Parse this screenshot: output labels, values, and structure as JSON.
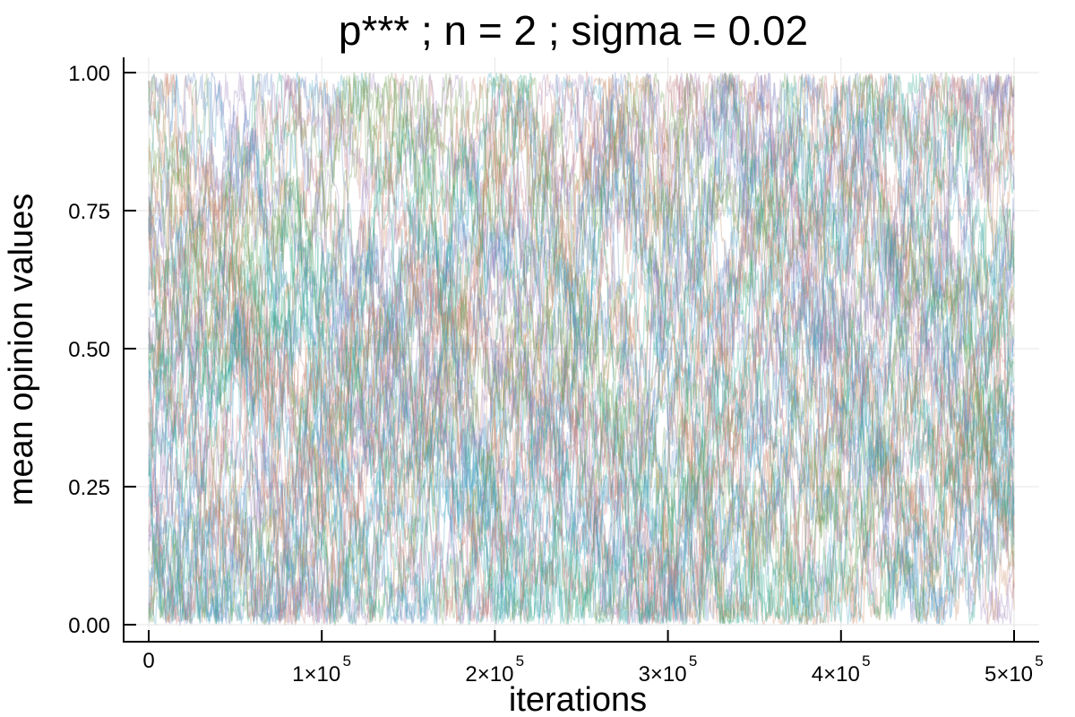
{
  "chart_data": {
    "type": "line",
    "title": "p***  ; n = 2 ; sigma = 0.02",
    "xlabel": "iterations",
    "ylabel": "mean opinion values",
    "xlim": [
      0,
      500000
    ],
    "ylim": [
      0,
      1
    ],
    "x_ticks": [
      {
        "value": 0,
        "label": "0",
        "exp": ""
      },
      {
        "value": 100000,
        "label": "1×10",
        "exp": "5"
      },
      {
        "value": 200000,
        "label": "2×10",
        "exp": "5"
      },
      {
        "value": 300000,
        "label": "3×10",
        "exp": "5"
      },
      {
        "value": 400000,
        "label": "4×10",
        "exp": "5"
      },
      {
        "value": 500000,
        "label": "5×10",
        "exp": "5"
      }
    ],
    "y_ticks": [
      {
        "value": 0,
        "label": "0.00"
      },
      {
        "value": 0.25,
        "label": "0.25"
      },
      {
        "value": 0.5,
        "label": "0.50"
      },
      {
        "value": 0.75,
        "label": "0.75"
      },
      {
        "value": 1,
        "label": "1.00"
      }
    ],
    "grid": true,
    "legend": "none",
    "series_description": "many overlapping semi-transparent noisy trajectories filling the range 0 to 1 over all iterations",
    "series_colors": [
      "#3a9fbf",
      "#c4797a",
      "#9d82b8",
      "#6e9a4f",
      "#2ca58a",
      "#c7845a",
      "#5f87c4"
    ],
    "series_count": 60,
    "step_sigma": 0.02
  }
}
